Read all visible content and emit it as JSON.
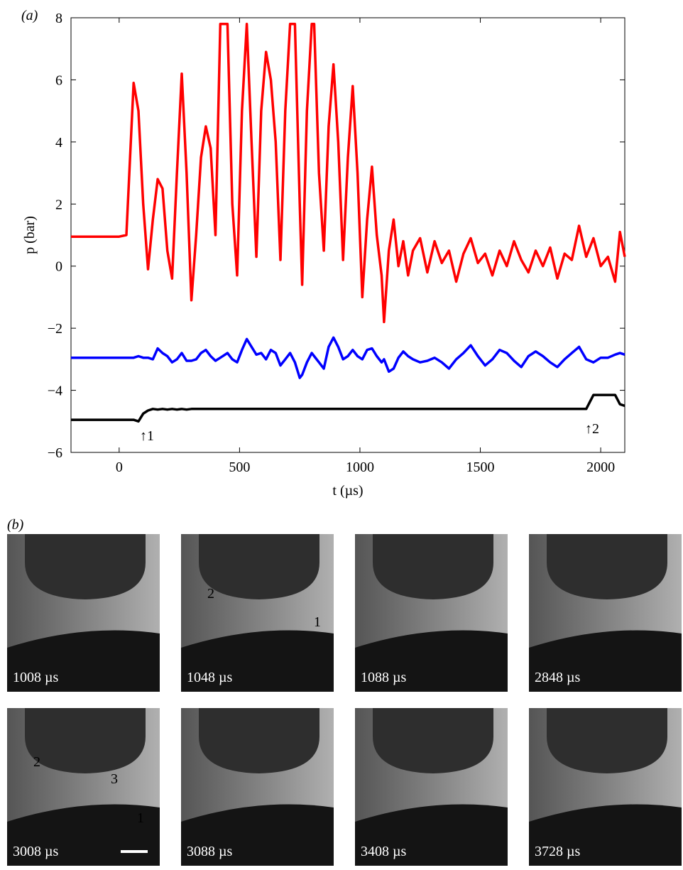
{
  "chart_data": {
    "type": "line",
    "panel_label": "(a)",
    "xlabel": "t (µs)",
    "ylabel": "p (bar)",
    "xlim": [
      -200,
      2100
    ],
    "ylim": [
      -6,
      8
    ],
    "xticks": [
      0,
      500,
      1000,
      1500,
      2000
    ],
    "yticks": [
      {
        "value": -6,
        "label": "−6"
      },
      {
        "value": -4,
        "label": "−4"
      },
      {
        "value": -2,
        "label": "−2"
      },
      0,
      2,
      4,
      6,
      8
    ],
    "annotations": [
      "↑1",
      "↑2"
    ],
    "x": [
      -200,
      0,
      30,
      60,
      80,
      100,
      120,
      140,
      160,
      180,
      200,
      220,
      240,
      260,
      280,
      300,
      320,
      340,
      360,
      380,
      400,
      420,
      450,
      470,
      490,
      510,
      530,
      550,
      570,
      590,
      610,
      630,
      650,
      670,
      690,
      710,
      730,
      750,
      760,
      780,
      800,
      810,
      830,
      850,
      870,
      890,
      910,
      930,
      950,
      970,
      990,
      1010,
      1030,
      1050,
      1070,
      1090,
      1100,
      1120,
      1140,
      1160,
      1180,
      1200,
      1220,
      1250,
      1280,
      1310,
      1340,
      1370,
      1400,
      1430,
      1460,
      1490,
      1520,
      1550,
      1580,
      1610,
      1640,
      1670,
      1700,
      1730,
      1760,
      1790,
      1820,
      1850,
      1880,
      1910,
      1940,
      1970,
      2000,
      2030,
      2060,
      2080,
      2100
    ],
    "series": [
      {
        "color": "#ff0000",
        "values": [
          0.95,
          0.95,
          1.0,
          5.9,
          5.0,
          2,
          -0.1,
          1.5,
          2.8,
          2.5,
          0.5,
          -0.4,
          3,
          6.2,
          3,
          -1.1,
          1,
          3.5,
          4.5,
          3.8,
          1,
          7.8,
          7.8,
          2,
          -0.3,
          5,
          7.8,
          4,
          0.3,
          5,
          6.9,
          6,
          4,
          0.2,
          5,
          7.8,
          7.8,
          2,
          -0.6,
          5,
          7.8,
          7.8,
          3,
          0.5,
          4.5,
          6.5,
          4,
          0.2,
          3.5,
          5.8,
          3,
          -1.0,
          1.5,
          3.2,
          1,
          -0.3,
          -1.8,
          0.5,
          1.5,
          0,
          0.8,
          -0.3,
          0.5,
          0.9,
          -0.2,
          0.8,
          0.1,
          0.5,
          -0.5,
          0.4,
          0.9,
          0.1,
          0.4,
          -0.3,
          0.5,
          0,
          0.8,
          0.2,
          -0.2,
          0.5,
          0,
          0.6,
          -0.4,
          0.4,
          0.2,
          1.3,
          0.3,
          0.9,
          0,
          0.3,
          -0.5,
          1.1,
          0.3
        ]
      },
      {
        "color": "#0000ff",
        "values": [
          -2.95,
          -2.95,
          -2.95,
          -2.95,
          -2.9,
          -2.95,
          -2.95,
          -3.0,
          -2.65,
          -2.8,
          -2.9,
          -3.1,
          -3.0,
          -2.8,
          -3.05,
          -3.05,
          -3.0,
          -2.8,
          -2.7,
          -2.9,
          -3.05,
          -2.95,
          -2.8,
          -3.0,
          -3.1,
          -2.7,
          -2.35,
          -2.6,
          -2.85,
          -2.8,
          -3.0,
          -2.7,
          -2.8,
          -3.2,
          -3.0,
          -2.8,
          -3.1,
          -3.6,
          -3.5,
          -3.1,
          -2.8,
          -2.9,
          -3.1,
          -3.3,
          -2.6,
          -2.3,
          -2.6,
          -3.0,
          -2.9,
          -2.7,
          -2.9,
          -3.0,
          -2.7,
          -2.65,
          -2.9,
          -3.1,
          -3.0,
          -3.4,
          -3.3,
          -2.95,
          -2.75,
          -2.9,
          -3.0,
          -3.1,
          -3.05,
          -2.95,
          -3.1,
          -3.3,
          -3.0,
          -2.8,
          -2.55,
          -2.9,
          -3.2,
          -3.0,
          -2.7,
          -2.8,
          -3.05,
          -3.25,
          -2.9,
          -2.75,
          -2.9,
          -3.1,
          -3.25,
          -3.0,
          -2.8,
          -2.6,
          -3.0,
          -3.1,
          -2.95,
          -2.95,
          -2.85,
          -2.8,
          -2.85
        ]
      },
      {
        "color": "#000000",
        "values": [
          -4.95,
          -4.95,
          -4.95,
          -4.95,
          -5.0,
          -4.75,
          -4.65,
          -4.6,
          -4.62,
          -4.6,
          -4.62,
          -4.6,
          -4.62,
          -4.6,
          -4.62,
          -4.6,
          -4.6,
          -4.6,
          -4.6,
          -4.6,
          -4.6,
          -4.6,
          -4.6,
          -4.6,
          -4.6,
          -4.6,
          -4.6,
          -4.6,
          -4.6,
          -4.6,
          -4.6,
          -4.6,
          -4.6,
          -4.6,
          -4.6,
          -4.6,
          -4.6,
          -4.6,
          -4.6,
          -4.6,
          -4.6,
          -4.6,
          -4.6,
          -4.6,
          -4.6,
          -4.6,
          -4.6,
          -4.6,
          -4.6,
          -4.6,
          -4.6,
          -4.6,
          -4.6,
          -4.6,
          -4.6,
          -4.6,
          -4.6,
          -4.6,
          -4.6,
          -4.6,
          -4.6,
          -4.6,
          -4.6,
          -4.6,
          -4.6,
          -4.6,
          -4.6,
          -4.6,
          -4.6,
          -4.6,
          -4.6,
          -4.6,
          -4.6,
          -4.6,
          -4.6,
          -4.6,
          -4.6,
          -4.6,
          -4.6,
          -4.6,
          -4.6,
          -4.6,
          -4.6,
          -4.6,
          -4.6,
          -4.6,
          -4.6,
          -4.15,
          -4.15,
          -4.15,
          -4.15,
          -4.45,
          -4.5
        ]
      }
    ]
  },
  "panel_b": {
    "label": "(b)",
    "frames": [
      {
        "time": "1008 µs",
        "labels": []
      },
      {
        "time": "1048 µs",
        "labels": [
          "2",
          "1"
        ]
      },
      {
        "time": "1088 µs",
        "labels": []
      },
      {
        "time": "2848 µs",
        "labels": []
      },
      {
        "time": "3008 µs",
        "labels": [
          "2",
          "3",
          "1"
        ]
      },
      {
        "time": "3088 µs",
        "labels": []
      },
      {
        "time": "3408 µs",
        "labels": []
      },
      {
        "time": "3728 µs",
        "labels": []
      }
    ]
  }
}
